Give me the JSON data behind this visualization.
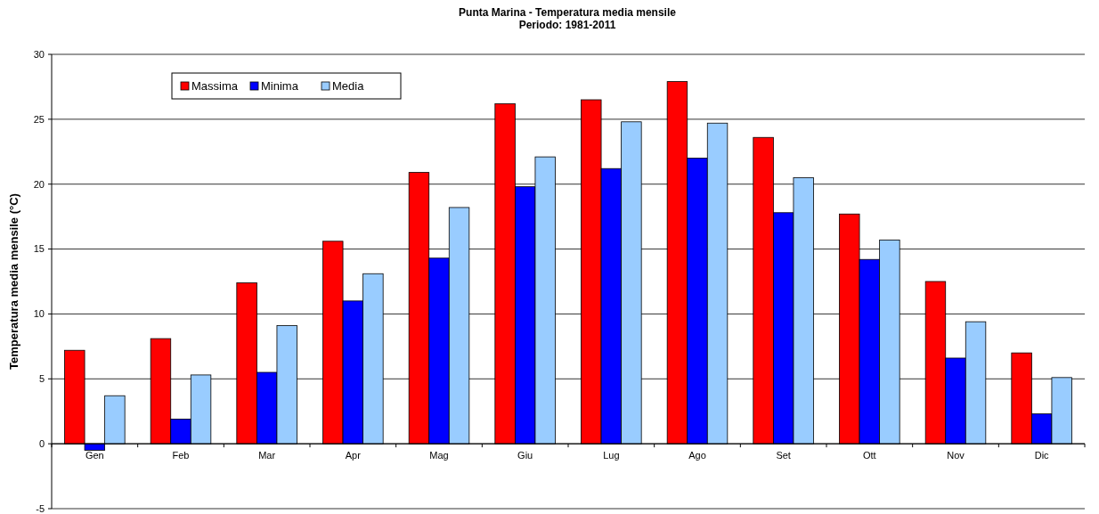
{
  "chart_data": {
    "type": "bar",
    "title": "Punta Marina - Temperatura media mensile",
    "subtitle": "Periodo: 1981-2011",
    "ylabel": "Temperatura media mensile (°C)",
    "categories": [
      "Gen",
      "Feb",
      "Mar",
      "Apr",
      "Mag",
      "Giu",
      "Lug",
      "Ago",
      "Set",
      "Ott",
      "Nov",
      "Dic"
    ],
    "series": [
      {
        "name": "Massima",
        "color": "#ff0000",
        "values": [
          7.2,
          8.1,
          12.4,
          15.6,
          20.9,
          26.2,
          26.5,
          27.9,
          23.6,
          17.7,
          12.5,
          7.0
        ]
      },
      {
        "name": "Minima",
        "color": "#0000ff",
        "values": [
          -0.5,
          1.9,
          5.5,
          11.0,
          14.3,
          19.8,
          21.2,
          22.0,
          17.8,
          14.2,
          6.6,
          2.3
        ]
      },
      {
        "name": "Media",
        "color": "#99ccff",
        "values": [
          3.7,
          5.3,
          9.1,
          13.1,
          18.2,
          22.1,
          24.8,
          24.7,
          20.5,
          15.7,
          9.4,
          5.1
        ]
      }
    ],
    "ylim": [
      -5,
      30
    ],
    "yticks": [
      -5,
      0,
      5,
      10,
      15,
      20,
      25,
      30
    ],
    "grid": "y",
    "legend": "top left"
  }
}
